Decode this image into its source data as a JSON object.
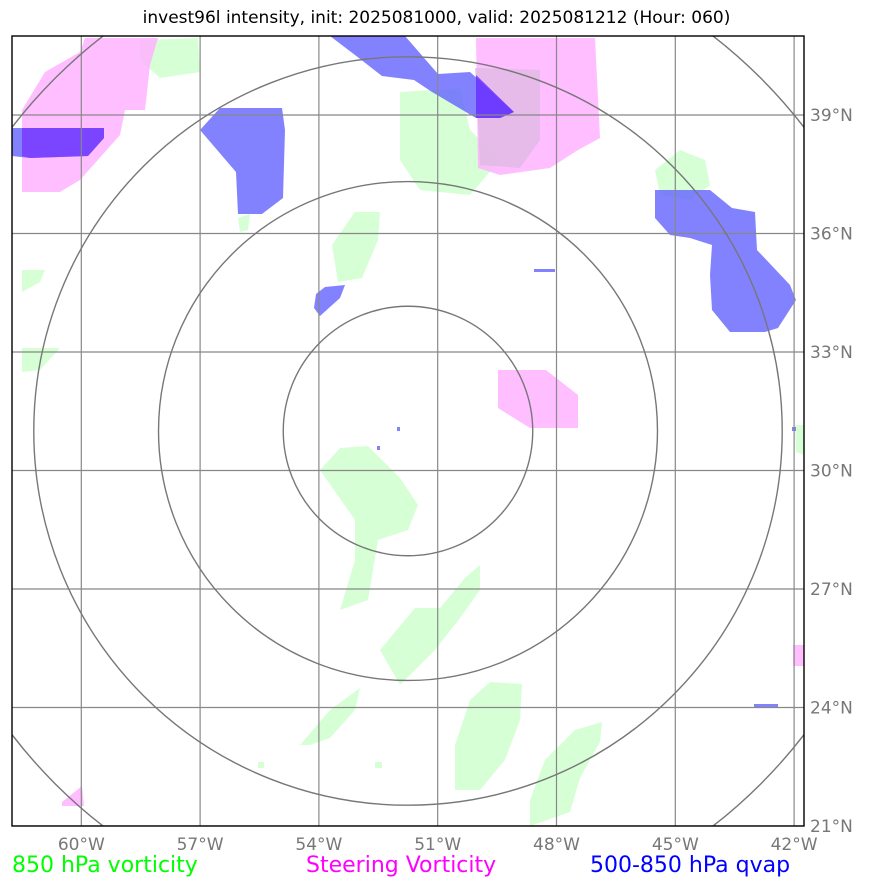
{
  "title": "invest96l intensity, init: 2025081000, valid: 2025081212 (Hour: 060)",
  "map": {
    "lon_range": [
      -61.75,
      -41.75
    ],
    "lat_range": [
      21.0,
      41.0
    ],
    "lon_ticks": [
      {
        "value": -60,
        "label": "60°W"
      },
      {
        "value": -57,
        "label": "57°W"
      },
      {
        "value": -54,
        "label": "54°W"
      },
      {
        "value": -51,
        "label": "51°W"
      },
      {
        "value": -48,
        "label": "48°W"
      },
      {
        "value": -45,
        "label": "45°W"
      },
      {
        "value": -42,
        "label": "42°W"
      }
    ],
    "lat_ticks": [
      {
        "value": 39,
        "label": "39°N"
      },
      {
        "value": 36,
        "label": "36°N"
      },
      {
        "value": 33,
        "label": "33°N"
      },
      {
        "value": 30,
        "label": "30°N"
      },
      {
        "value": 27,
        "label": "27°N"
      },
      {
        "value": 24,
        "label": "24°N"
      },
      {
        "value": 21,
        "label": "21°N"
      }
    ],
    "center": {
      "lon": -51.75,
      "lat": 31.0
    },
    "range_rings_deg": [
      3.15,
      6.3,
      9.45,
      12.6
    ],
    "colors": {
      "vorticity_850": "#ccffcc",
      "steering_vorticity": "#ffb3ff",
      "qvap": "#6666ff",
      "grid": "#888888",
      "ring": "#777777"
    }
  },
  "legend": {
    "vorticity_850": "850 hPa vorticity",
    "steering": "Steering Vorticity",
    "qvap": "500-850 hPa qvap"
  }
}
